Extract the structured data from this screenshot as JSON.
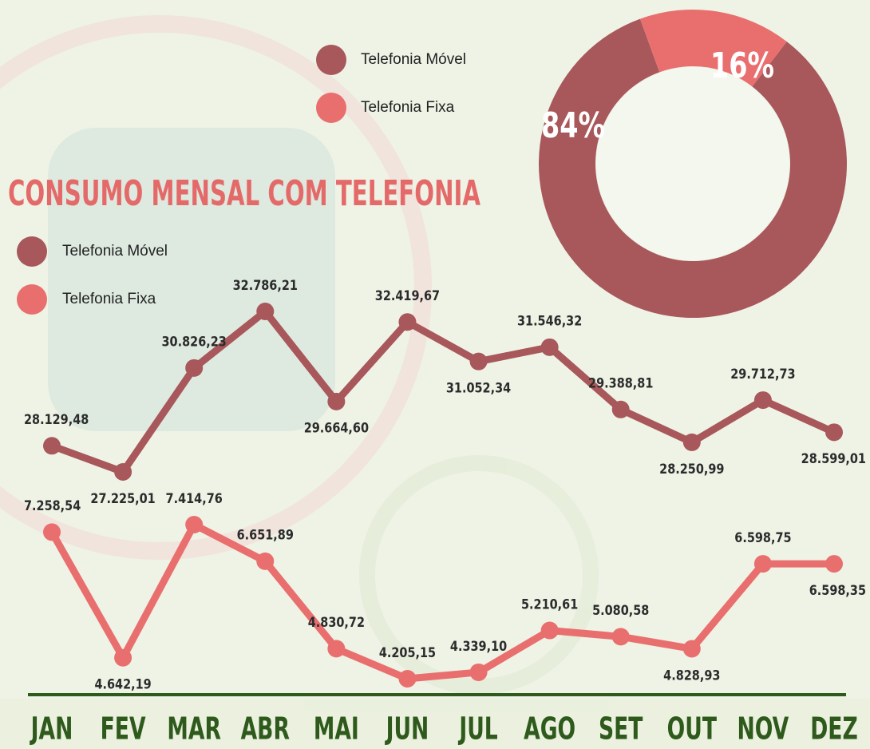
{
  "chart_data": [
    {
      "type": "pie",
      "categories": [
        "Telefonia Móvel",
        "Telefonia Fixa"
      ],
      "values": [
        84,
        16
      ],
      "value_labels": [
        "84%",
        "16%"
      ],
      "colors": [
        "#a8575a",
        "#e96f6f"
      ]
    },
    {
      "type": "line",
      "title": "CONSUMO MENSAL COM TELEFONIA",
      "categories": [
        "JAN",
        "FEV",
        "MAR",
        "ABR",
        "MAI",
        "JUN",
        "JUL",
        "AGO",
        "SET",
        "OUT",
        "NOV",
        "DEZ"
      ],
      "series": [
        {
          "name": "Telefonia Móvel",
          "color": "#a8575a",
          "values": [
            28129.48,
            27225.01,
            30826.23,
            32786.21,
            29664.6,
            32419.67,
            31052.34,
            31546.32,
            29388.81,
            28250.99,
            29712.73,
            28599.01
          ],
          "value_labels": [
            "28.129,48",
            "27.225,01",
            "30.826,23",
            "32.786,21",
            "29.664,60",
            "32.419,67",
            "31.052,34",
            "31.546,32",
            "29.388,81",
            "28.250,99",
            "29.712,73",
            "28.599,01"
          ]
        },
        {
          "name": "Telefonia Fixa",
          "color": "#e96f6f",
          "values": [
            7258.54,
            4642.19,
            7414.76,
            6651.89,
            4830.72,
            4205.15,
            4339.1,
            5210.61,
            5080.58,
            4828.93,
            6598.75,
            6598.35
          ],
          "value_labels": [
            "7.258,54",
            "4.642,19",
            "7.414,76",
            "6.651,89",
            "4.830,72",
            "4.205,15",
            "4.339,10",
            "5.210,61",
            "5.080,58",
            "4.828,93",
            "6.598,75",
            "6.598,35"
          ]
        }
      ]
    }
  ]
}
